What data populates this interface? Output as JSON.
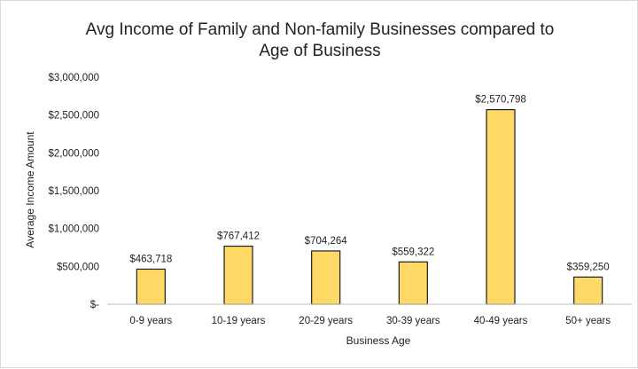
{
  "chart_data": {
    "type": "bar",
    "title_lines": [
      "Avg Income of Family and Non-family Businesses compared to",
      "Age of Business"
    ],
    "xlabel": "Business Age",
    "ylabel": "Average Income Amount",
    "categories": [
      "0-9 years",
      "10-19 years",
      "20-29 years",
      "30-39 years",
      "40-49 years",
      "50+ years"
    ],
    "values": [
      463718,
      767412,
      704264,
      559322,
      2570798,
      359250
    ],
    "data_labels": [
      "$463,718",
      "$767,412",
      "$704,264",
      "$559,322",
      "$2,570,798",
      "$359,250"
    ],
    "ylim": [
      0,
      3000000
    ],
    "yticks": [
      0,
      500000,
      1000000,
      1500000,
      2000000,
      2500000,
      3000000
    ],
    "ytick_labels": [
      "$-",
      "$500,000",
      "$1,000,000",
      "$1,500,000",
      "$2,000,000",
      "$2,500,000",
      "$3,000,000"
    ],
    "grid": false,
    "legend": "none",
    "colors": {
      "bar_fill": "#FFD966",
      "bar_stroke": "#1f1f1f",
      "axis": "#bfbfbf"
    }
  }
}
